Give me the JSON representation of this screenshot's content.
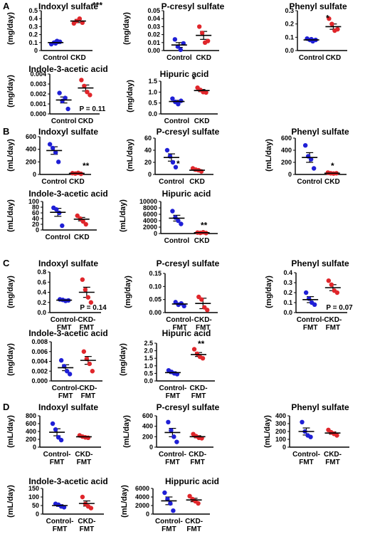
{
  "colors": {
    "control": "#1f1fd6",
    "ckd": "#e0262b",
    "axis": "#000000"
  },
  "chart_data": [
    {
      "panel": "A",
      "type": "scatter",
      "title": "Indoxyl sulfate",
      "ylabel": "(mg/day)",
      "yticks": [
        "0",
        "0.1",
        "0.2",
        "0.3",
        "0.4",
        "0.5"
      ],
      "ylim": [
        0,
        0.5
      ],
      "categories": [
        "Control",
        "CKD"
      ],
      "series": [
        {
          "values": [
            0.08,
            0.1,
            0.12,
            0.11,
            0.09
          ],
          "mean": 0.1,
          "sem": 0.012
        },
        {
          "values": [
            0.34,
            0.37,
            0.4,
            0.35
          ],
          "mean": 0.37,
          "sem": 0.02
        }
      ],
      "annotation": "***"
    },
    {
      "panel": "A",
      "type": "scatter",
      "title": "P-cresyl sulfate",
      "ylabel": "(mg/day)",
      "yticks": [
        "0.00",
        "0.01",
        "0.02",
        "0.03",
        "0.04",
        "0.05"
      ],
      "ylim": [
        0,
        0.05
      ],
      "categories": [
        "Control",
        "CKD"
      ],
      "series": [
        {
          "values": [
            0.014,
            0.005,
            0.001,
            0.009
          ],
          "mean": 0.007,
          "sem": 0.003
        },
        {
          "values": [
            0.03,
            0.022,
            0.01,
            0.012
          ],
          "mean": 0.019,
          "sem": 0.005
        }
      ],
      "annotation": ""
    },
    {
      "panel": "A",
      "type": "scatter",
      "title": "Phenyl sulfate",
      "ylabel": "",
      "yticks": [
        "0.0",
        "0.1",
        "0.2",
        "0.3"
      ],
      "ylim": [
        0,
        0.3
      ],
      "categories": [
        "Control",
        "CKD"
      ],
      "series": [
        {
          "values": [
            0.09,
            0.08,
            0.07,
            0.08,
            0.085
          ],
          "mean": 0.08,
          "sem": 0.007
        },
        {
          "values": [
            0.24,
            0.2,
            0.15,
            0.16
          ],
          "mean": 0.18,
          "sem": 0.02
        }
      ],
      "annotation": "*"
    },
    {
      "panel": "A",
      "type": "scatter",
      "title": "Indole-3-acetic acid",
      "ylabel": "(mg/day)",
      "yticks": [
        "0.000",
        "0.001",
        "0.002",
        "0.003",
        "0.004"
      ],
      "ylim": [
        0,
        0.004
      ],
      "categories": [
        "Control",
        "CKD"
      ],
      "series": [
        {
          "values": [
            0.0021,
            0.0013,
            0.0016,
            0.0005
          ],
          "mean": 0.0014,
          "sem": 0.0003
        },
        {
          "values": [
            0.0034,
            0.0028,
            0.0022,
            0.0019
          ],
          "mean": 0.0026,
          "sem": 0.0003
        }
      ],
      "annotation": "P = 0.11"
    },
    {
      "panel": "A",
      "type": "scatter",
      "title": "Hipuric acid",
      "ylabel": "(mg/day)",
      "yticks": [
        "0.0",
        "0.5",
        "1.0",
        "1.5"
      ],
      "ylim": [
        0,
        1.5
      ],
      "categories": [
        "Control",
        "CKD"
      ],
      "series": [
        {
          "values": [
            0.7,
            0.55,
            0.45,
            0.6
          ],
          "mean": 0.57,
          "sem": 0.05
        },
        {
          "values": [
            1.2,
            1.1,
            1.0,
            0.98
          ],
          "mean": 1.07,
          "sem": 0.05
        }
      ],
      "annotation": "*"
    },
    {
      "panel": "B",
      "type": "scatter",
      "title": "Indoxyl sulfate",
      "ylabel": "(mL/day)",
      "yticks": [
        "0",
        "200",
        "400",
        "600"
      ],
      "ylim": [
        0,
        600
      ],
      "categories": [
        "Control",
        "CKD"
      ],
      "series": [
        {
          "values": [
            480,
            420,
            350,
            200
          ],
          "mean": 380,
          "sem": 60
        },
        {
          "values": [
            20,
            15,
            25,
            10
          ],
          "mean": 18,
          "sem": 5
        }
      ],
      "annotation": "**"
    },
    {
      "panel": "B",
      "type": "scatter",
      "title": "P-cresyl sulfate",
      "ylabel": "(mL/day)",
      "yticks": [
        "0",
        "20",
        "40",
        "60"
      ],
      "ylim": [
        0,
        60
      ],
      "categories": [
        "Control",
        "CKD"
      ],
      "series": [
        {
          "values": [
            40,
            30,
            20,
            12
          ],
          "mean": 28,
          "sem": 6
        },
        {
          "values": [
            10,
            8,
            7,
            5
          ],
          "mean": 7,
          "sem": 1.2
        }
      ],
      "annotation": "*"
    },
    {
      "panel": "B",
      "type": "scatter",
      "title": "Phenyl sulfate",
      "ylabel": "(mL/day)",
      "yticks": [
        "0",
        "200",
        "400",
        "600"
      ],
      "ylim": [
        0,
        600
      ],
      "categories": [
        "Control",
        "CKD"
      ],
      "series": [
        {
          "values": [
            480,
            300,
            250,
            100
          ],
          "mean": 280,
          "sem": 80
        },
        {
          "values": [
            30,
            20,
            15,
            20
          ],
          "mean": 20,
          "sem": 5
        }
      ],
      "annotation": "*"
    },
    {
      "panel": "B",
      "type": "scatter",
      "title": "Indole-3-acetic acid",
      "ylabel": "(mL/day)",
      "yticks": [
        "0",
        "20",
        "40",
        "60",
        "80",
        "100"
      ],
      "ylim": [
        0,
        100
      ],
      "categories": [
        "Control",
        "CKD"
      ],
      "series": [
        {
          "values": [
            78,
            72,
            60,
            15
          ],
          "mean": 62,
          "sem": 14
        },
        {
          "values": [
            50,
            40,
            30,
            20
          ],
          "mean": 38,
          "sem": 6
        }
      ],
      "annotation": ""
    },
    {
      "panel": "B",
      "type": "scatter",
      "title": "Hipuric acid",
      "ylabel": "(mL/day)",
      "yticks": [
        "0",
        "2000",
        "4000",
        "6000",
        "8000",
        "10000"
      ],
      "ylim": [
        0,
        10000
      ],
      "categories": [
        "Control",
        "CKD"
      ],
      "series": [
        {
          "values": [
            7000,
            5000,
            4000,
            3000
          ],
          "mean": 4800,
          "sem": 900
        },
        {
          "values": [
            300,
            200,
            400,
            150
          ],
          "mean": 260,
          "sem": 60
        }
      ],
      "annotation": "**"
    },
    {
      "panel": "C",
      "type": "scatter",
      "title": "Indoxyl sulfate",
      "ylabel": "(mg/day)",
      "yticks": [
        "0.0",
        "0.2",
        "0.4",
        "0.6",
        "0.8"
      ],
      "ylim": [
        0,
        0.8
      ],
      "categories": [
        "Control-\nFMT",
        "CKD-\nFMT"
      ],
      "series": [
        {
          "values": [
            0.26,
            0.25,
            0.23,
            0.24
          ],
          "mean": 0.245,
          "sem": 0.01
        },
        {
          "values": [
            0.65,
            0.45,
            0.3,
            0.2
          ],
          "mean": 0.4,
          "sem": 0.1
        }
      ],
      "annotation": "P = 0.14"
    },
    {
      "panel": "C",
      "type": "scatter",
      "title": "P-cresyl sulfate",
      "ylabel": "(mg/day)",
      "yticks": [
        "0.00",
        "0.05",
        "0.10",
        "0.15"
      ],
      "ylim": [
        0,
        0.15
      ],
      "categories": [
        "Control-\nFMT",
        "CKD-\nFMT"
      ],
      "series": [
        {
          "values": [
            0.04,
            0.03,
            0.035,
            0.025
          ],
          "mean": 0.033,
          "sem": 0.004
        },
        {
          "values": [
            0.06,
            0.05,
            0.02,
            0.01
          ],
          "mean": 0.035,
          "sem": 0.02
        }
      ],
      "annotation": ""
    },
    {
      "panel": "C",
      "type": "scatter",
      "title": "Phenyl sulfate",
      "ylabel": "(mg/day)",
      "yticks": [
        "0.0",
        "0.1",
        "0.2",
        "0.3",
        "0.4"
      ],
      "ylim": [
        0,
        0.4
      ],
      "categories": [
        "Control-\nFMT",
        "CKD-\nFMT"
      ],
      "series": [
        {
          "values": [
            0.2,
            0.14,
            0.1,
            0.08
          ],
          "mean": 0.13,
          "sem": 0.03
        },
        {
          "values": [
            0.32,
            0.28,
            0.22,
            0.2
          ],
          "mean": 0.25,
          "sem": 0.03
        }
      ],
      "annotation": "P = 0.07"
    },
    {
      "panel": "C",
      "type": "scatter",
      "title": "Indole-3-acetic acid",
      "ylabel": "(mg/day)",
      "yticks": [
        "0.000",
        "0.002",
        "0.004",
        "0.006",
        "0.008"
      ],
      "ylim": [
        0,
        0.008
      ],
      "categories": [
        "Control-\nFMT",
        "CKD-\nFMT"
      ],
      "series": [
        {
          "values": [
            0.0042,
            0.003,
            0.002,
            0.0014
          ],
          "mean": 0.0027,
          "sem": 0.0006
        },
        {
          "values": [
            0.006,
            0.0045,
            0.0035,
            0.002
          ],
          "mean": 0.0042,
          "sem": 0.0008
        }
      ],
      "annotation": ""
    },
    {
      "panel": "C",
      "type": "scatter",
      "title": "Hipuric acid",
      "ylabel": "(mg/day)",
      "yticks": [
        "0.0",
        "0.5",
        "1.0",
        "1.5",
        "2.0",
        "2.5"
      ],
      "ylim": [
        0,
        2.5
      ],
      "categories": [
        "Control-\nFMT",
        "CKD-\nFMT"
      ],
      "series": [
        {
          "values": [
            0.7,
            0.6,
            0.5,
            0.45
          ],
          "mean": 0.55,
          "sem": 0.06
        },
        {
          "values": [
            2.1,
            1.8,
            1.6,
            1.5
          ],
          "mean": 1.75,
          "sem": 0.13
        }
      ],
      "annotation": "**"
    },
    {
      "panel": "D",
      "type": "scatter",
      "title": "Indoxyl sulfate",
      "ylabel": "(mL/day)",
      "yticks": [
        "0",
        "200",
        "400",
        "600",
        "800"
      ],
      "ylim": [
        0,
        800
      ],
      "categories": [
        "Control-\nFMT",
        "CKD-\nFMT"
      ],
      "series": [
        {
          "values": [
            600,
            450,
            250,
            180
          ],
          "mean": 380,
          "sem": 90
        },
        {
          "values": [
            300,
            270,
            250,
            240
          ],
          "mean": 265,
          "sem": 15
        }
      ],
      "annotation": ""
    },
    {
      "panel": "D",
      "type": "scatter",
      "title": "P-cresyl sulfate",
      "ylabel": "(mL/day)",
      "yticks": [
        "0",
        "200",
        "400",
        "600"
      ],
      "ylim": [
        0,
        600
      ],
      "categories": [
        "Control-\nFMT",
        "CKD-\nFMT"
      ],
      "series": [
        {
          "values": [
            480,
            320,
            200,
            100
          ],
          "mean": 280,
          "sem": 80
        },
        {
          "values": [
            250,
            210,
            180,
            170
          ],
          "mean": 200,
          "sem": 20
        }
      ],
      "annotation": ""
    },
    {
      "panel": "D",
      "type": "scatter",
      "title": "Phenyl sulfate",
      "ylabel": "(mL/day)",
      "yticks": [
        "0",
        "100",
        "200",
        "300",
        "400"
      ],
      "ylim": [
        0,
        400
      ],
      "categories": [
        "Control-\nFMT",
        "CKD-\nFMT"
      ],
      "series": [
        {
          "values": [
            320,
            200,
            150,
            130
          ],
          "mean": 200,
          "sem": 45
        },
        {
          "values": [
            220,
            190,
            170,
            150
          ],
          "mean": 180,
          "sem": 15
        }
      ],
      "annotation": ""
    },
    {
      "panel": "D",
      "type": "scatter",
      "title": "Indole-3-acetic acid",
      "ylabel": "(mL/day)",
      "yticks": [
        "0",
        "50",
        "100",
        "150"
      ],
      "ylim": [
        0,
        150
      ],
      "categories": [
        "Control-\nFMT",
        "CKD-\nFMT"
      ],
      "series": [
        {
          "values": [
            60,
            55,
            45,
            40
          ],
          "mean": 50,
          "sem": 5
        },
        {
          "values": [
            100,
            60,
            45,
            35
          ],
          "mean": 62,
          "sem": 15
        }
      ],
      "annotation": ""
    },
    {
      "panel": "D",
      "type": "scatter",
      "title": "Hippuric acid",
      "ylabel": "(mL/day)",
      "yticks": [
        "0",
        "2000",
        "4000",
        "6000"
      ],
      "ylim": [
        0,
        6000
      ],
      "categories": [
        "Control-\nFMT",
        "CKD-\nFMT"
      ],
      "series": [
        {
          "values": [
            5000,
            3500,
            2500,
            800
          ],
          "mean": 3100,
          "sem": 900
        },
        {
          "values": [
            4200,
            3500,
            3000,
            2500
          ],
          "mean": 3300,
          "sem": 400
        }
      ],
      "annotation": ""
    }
  ]
}
